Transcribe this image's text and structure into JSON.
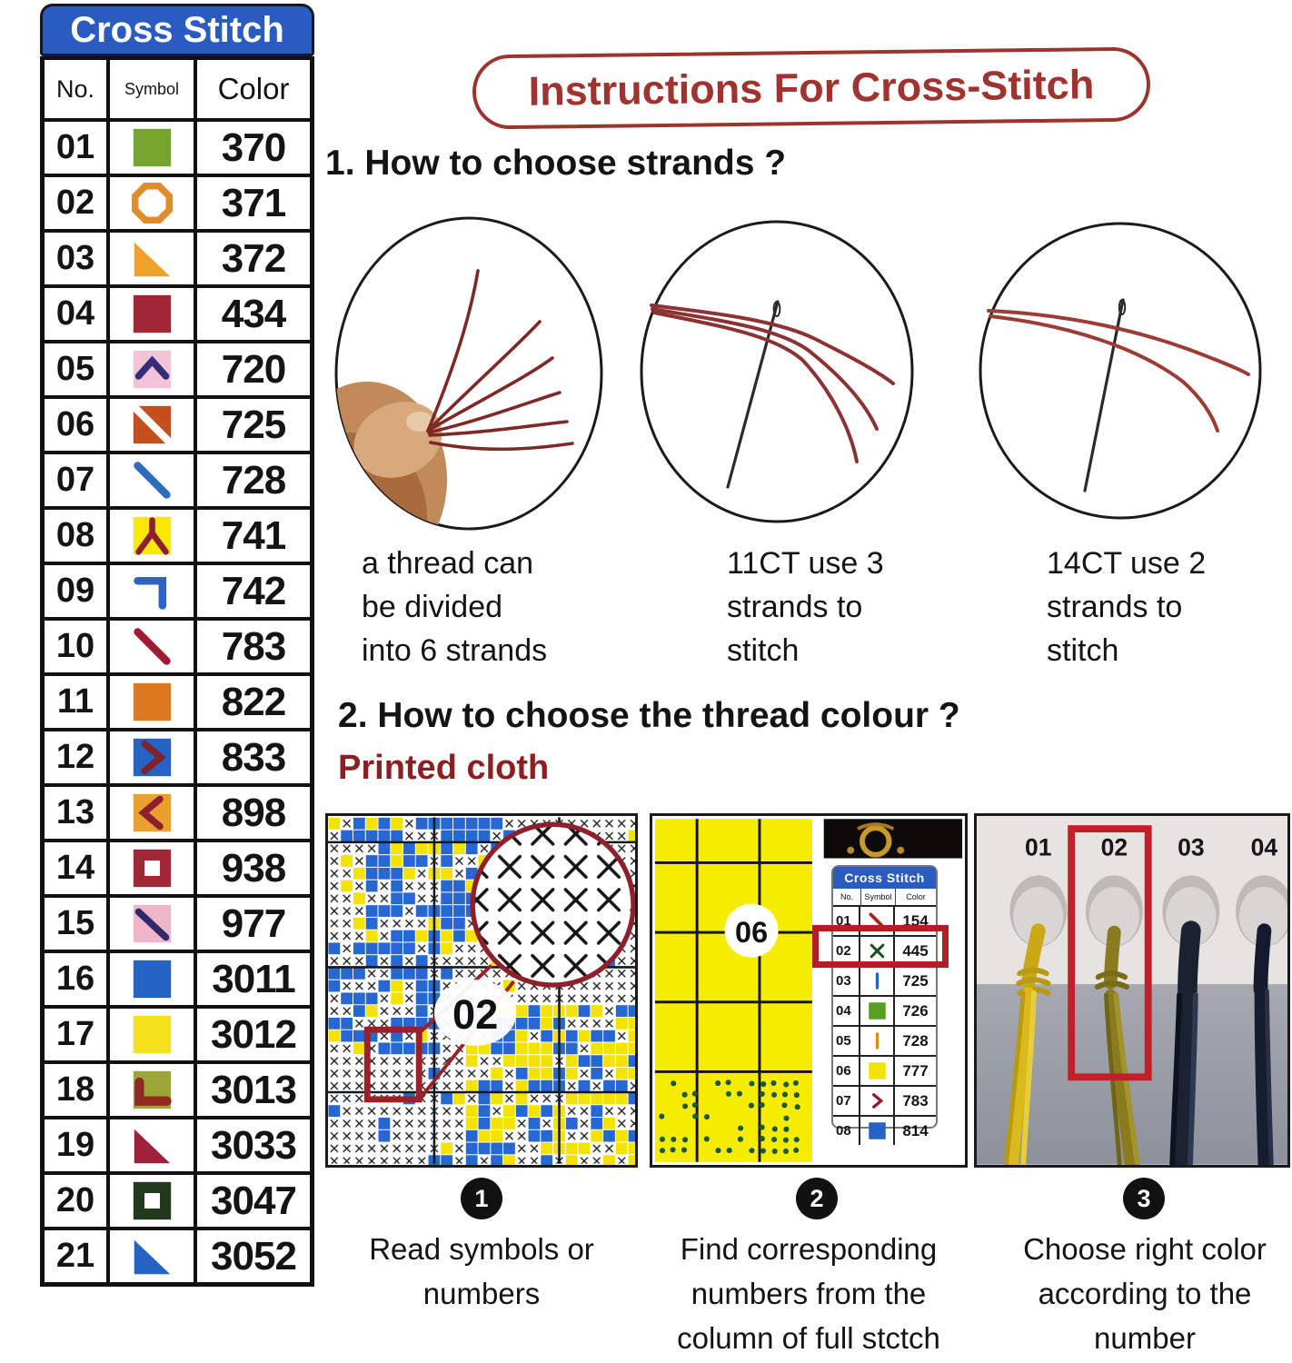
{
  "colors": {
    "header_blue": "#2a5bc0",
    "accent_red": "#b01f24",
    "title_red": "#a03330",
    "printed_red": "#8c1f22"
  },
  "legend": {
    "title": "Cross Stitch",
    "headers": [
      "No.",
      "Symbol",
      "Color"
    ],
    "rows": [
      {
        "no": "01",
        "color": "370",
        "symbol": {
          "name": "green-square",
          "type": "square",
          "fill": "#76a42c"
        }
      },
      {
        "no": "02",
        "color": "371",
        "symbol": {
          "name": "orange-octagon",
          "type": "octagon",
          "stroke": "#df8d2a"
        }
      },
      {
        "no": "03",
        "color": "372",
        "symbol": {
          "name": "orange-triangle",
          "type": "triangle",
          "fill": "#efa22b"
        }
      },
      {
        "no": "04",
        "color": "434",
        "symbol": {
          "name": "dark-red-square",
          "type": "square",
          "fill": "#a12734"
        }
      },
      {
        "no": "05",
        "color": "720",
        "symbol": {
          "name": "navy-chevron-up-on-pink",
          "type": "chevron-up",
          "bg": "#f3c3d7",
          "stroke": "#332d77"
        }
      },
      {
        "no": "06",
        "color": "725",
        "symbol": {
          "name": "rust-square-white-stripe",
          "type": "diag-split",
          "bg": "#c44f1d",
          "stripe": "#ffffff"
        }
      },
      {
        "no": "07",
        "color": "728",
        "symbol": {
          "name": "blue-diagonal-line",
          "type": "diag-line",
          "stroke": "#2e6cc0"
        }
      },
      {
        "no": "08",
        "color": "741",
        "symbol": {
          "name": "dark-red-y-mark-on-yellow",
          "type": "y-mark",
          "bg": "#fae800",
          "stroke": "#8e1f31"
        }
      },
      {
        "no": "09",
        "color": "742",
        "symbol": {
          "name": "blue-corner-bracket",
          "type": "corner",
          "stroke": "#2e62c8"
        }
      },
      {
        "no": "10",
        "color": "783",
        "symbol": {
          "name": "dark-red-diagonal-line",
          "type": "diag-line",
          "stroke": "#9e1c33"
        }
      },
      {
        "no": "11",
        "color": "822",
        "symbol": {
          "name": "orange-square",
          "type": "square",
          "fill": "#dd7a1f"
        }
      },
      {
        "no": "12",
        "color": "833",
        "symbol": {
          "name": "maroon-chevron-right-on-blue",
          "type": "chevron-right",
          "bg": "#2563c4",
          "stroke": "#7e2230"
        }
      },
      {
        "no": "13",
        "color": "898",
        "symbol": {
          "name": "maroon-chevron-left-on-orange",
          "type": "chevron-left",
          "bg": "#eba02b",
          "stroke": "#8e1f31"
        }
      },
      {
        "no": "14",
        "color": "938",
        "symbol": {
          "name": "hollow-dark-red-square",
          "type": "square-hole",
          "fill": "#a12734",
          "inner": "#ffffff"
        }
      },
      {
        "no": "15",
        "color": "977",
        "symbol": {
          "name": "navy-diagonal-on-pink",
          "type": "diag-line-bg",
          "bg": "#efb6ca",
          "stroke": "#2e2a6a"
        }
      },
      {
        "no": "16",
        "color": "3011",
        "symbol": {
          "name": "blue-square",
          "type": "square",
          "fill": "#2563c4"
        }
      },
      {
        "no": "17",
        "color": "3012",
        "symbol": {
          "name": "yellow-square",
          "type": "square",
          "fill": "#f3e11c"
        }
      },
      {
        "no": "18",
        "color": "3013",
        "symbol": {
          "name": "dark-red-l-mark-on-olive",
          "type": "l-mark",
          "bg": "#9ca637",
          "stroke": "#8e2a20"
        }
      },
      {
        "no": "19",
        "color": "3033",
        "symbol": {
          "name": "dark-red-triangle",
          "type": "triangle",
          "fill": "#a1203a"
        }
      },
      {
        "no": "20",
        "color": "3047",
        "symbol": {
          "name": "hollow-dark-green-square",
          "type": "square-hole",
          "fill": "#22391c",
          "inner": "#ffffff"
        }
      },
      {
        "no": "21",
        "color": "3052",
        "symbol": {
          "name": "blue-triangle",
          "type": "triangle",
          "fill": "#2563c4"
        }
      }
    ]
  },
  "instructions": {
    "title": "Instructions For Cross-Stitch"
  },
  "step1": {
    "heading": "1. How to choose strands ?",
    "captions": [
      {
        "lines": [
          "a thread can",
          "be divided",
          "into 6 strands"
        ]
      },
      {
        "lines": [
          "11CT use 3",
          "strands to",
          "stitch"
        ]
      },
      {
        "lines": [
          "14CT use 2",
          "strands to",
          "stitch"
        ]
      }
    ]
  },
  "step2": {
    "heading": "2. How to choose the thread colour ?",
    "subheading": "Printed cloth"
  },
  "panel1": {
    "label": "02"
  },
  "panel2": {
    "cloth_label": "06",
    "card": {
      "title": "Cross Stitch",
      "headers": [
        "No.",
        "Symbol",
        "Color"
      ],
      "rows": [
        {
          "no": "01",
          "color": "154",
          "symbol": {
            "name": "red-diagonal-line",
            "type": "diag-line",
            "stroke": "#b02025"
          }
        },
        {
          "no": "02",
          "color": "445",
          "symbol": {
            "name": "green-x-mark",
            "type": "x-mark",
            "stroke": "#1c4a22"
          }
        },
        {
          "no": "03",
          "color": "725",
          "symbol": {
            "name": "blue-vertical-line",
            "type": "v-line",
            "stroke": "#2563c4"
          }
        },
        {
          "no": "04",
          "color": "726",
          "symbol": {
            "name": "green-square",
            "type": "square",
            "fill": "#55a020"
          }
        },
        {
          "no": "05",
          "color": "728",
          "symbol": {
            "name": "orange-vertical-line",
            "type": "v-line",
            "stroke": "#e08a1f"
          }
        },
        {
          "no": "06",
          "color": "777",
          "symbol": {
            "name": "yellow-square",
            "type": "square",
            "fill": "#f2e400"
          }
        },
        {
          "no": "07",
          "color": "783",
          "symbol": {
            "name": "dark-red-chevron-right",
            "type": "chevron-right",
            "stroke": "#8e1f31"
          }
        },
        {
          "no": "08",
          "color": "814",
          "symbol": {
            "name": "blue-square",
            "type": "square",
            "fill": "#2563c4"
          }
        }
      ]
    }
  },
  "panel3": {
    "labels": [
      "01",
      "02",
      "03",
      "04"
    ]
  },
  "steps": [
    {
      "num": "1",
      "lines": [
        "Read symbols or",
        "numbers"
      ]
    },
    {
      "num": "2",
      "lines": [
        "Find corresponding",
        "numbers from the",
        "column of full stctch"
      ]
    },
    {
      "num": "3",
      "lines": [
        "Choose right color",
        "according to the",
        "number"
      ]
    }
  ]
}
